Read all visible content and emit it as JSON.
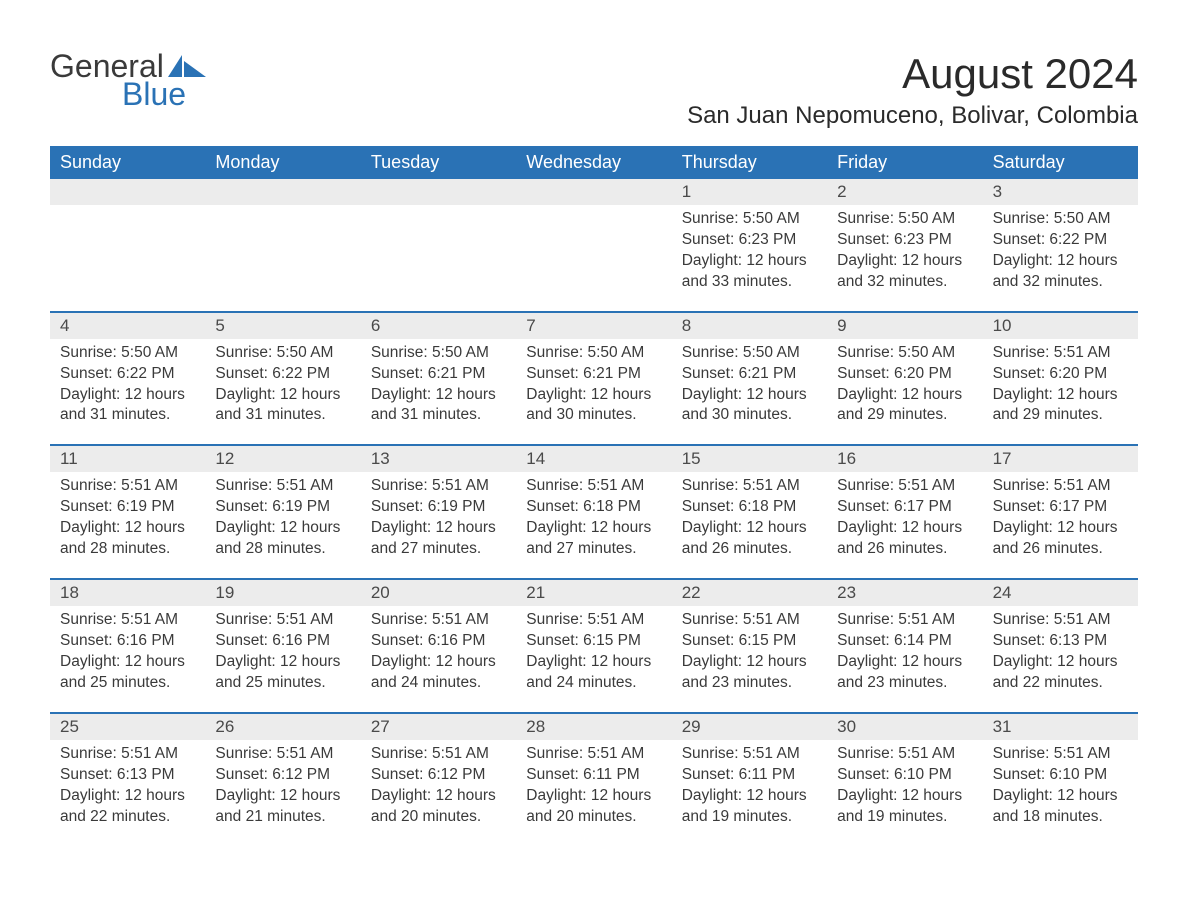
{
  "logo": {
    "text_general": "General",
    "text_blue": "Blue",
    "sail_color": "#2a72b5"
  },
  "header": {
    "month_title": "August 2024",
    "location": "San Juan Nepomuceno, Bolivar, Colombia"
  },
  "styling": {
    "header_bg": "#2a72b5",
    "header_text_color": "#ffffff",
    "daynum_bg": "#ececec",
    "daynum_color": "#4a4a4a",
    "body_text_color": "#3a3a3a",
    "row_border_color": "#2a72b5",
    "page_bg": "#ffffff",
    "month_title_fontsize": 42,
    "location_fontsize": 24,
    "weekday_fontsize": 18,
    "daynum_fontsize": 17,
    "detail_fontsize": 15.5
  },
  "weekdays": [
    "Sunday",
    "Monday",
    "Tuesday",
    "Wednesday",
    "Thursday",
    "Friday",
    "Saturday"
  ],
  "weeks": [
    [
      {
        "day": "",
        "sunrise": "",
        "sunset": "",
        "daylight": ""
      },
      {
        "day": "",
        "sunrise": "",
        "sunset": "",
        "daylight": ""
      },
      {
        "day": "",
        "sunrise": "",
        "sunset": "",
        "daylight": ""
      },
      {
        "day": "",
        "sunrise": "",
        "sunset": "",
        "daylight": ""
      },
      {
        "day": "1",
        "sunrise": "Sunrise: 5:50 AM",
        "sunset": "Sunset: 6:23 PM",
        "daylight": "Daylight: 12 hours and 33 minutes."
      },
      {
        "day": "2",
        "sunrise": "Sunrise: 5:50 AM",
        "sunset": "Sunset: 6:23 PM",
        "daylight": "Daylight: 12 hours and 32 minutes."
      },
      {
        "day": "3",
        "sunrise": "Sunrise: 5:50 AM",
        "sunset": "Sunset: 6:22 PM",
        "daylight": "Daylight: 12 hours and 32 minutes."
      }
    ],
    [
      {
        "day": "4",
        "sunrise": "Sunrise: 5:50 AM",
        "sunset": "Sunset: 6:22 PM",
        "daylight": "Daylight: 12 hours and 31 minutes."
      },
      {
        "day": "5",
        "sunrise": "Sunrise: 5:50 AM",
        "sunset": "Sunset: 6:22 PM",
        "daylight": "Daylight: 12 hours and 31 minutes."
      },
      {
        "day": "6",
        "sunrise": "Sunrise: 5:50 AM",
        "sunset": "Sunset: 6:21 PM",
        "daylight": "Daylight: 12 hours and 31 minutes."
      },
      {
        "day": "7",
        "sunrise": "Sunrise: 5:50 AM",
        "sunset": "Sunset: 6:21 PM",
        "daylight": "Daylight: 12 hours and 30 minutes."
      },
      {
        "day": "8",
        "sunrise": "Sunrise: 5:50 AM",
        "sunset": "Sunset: 6:21 PM",
        "daylight": "Daylight: 12 hours and 30 minutes."
      },
      {
        "day": "9",
        "sunrise": "Sunrise: 5:50 AM",
        "sunset": "Sunset: 6:20 PM",
        "daylight": "Daylight: 12 hours and 29 minutes."
      },
      {
        "day": "10",
        "sunrise": "Sunrise: 5:51 AM",
        "sunset": "Sunset: 6:20 PM",
        "daylight": "Daylight: 12 hours and 29 minutes."
      }
    ],
    [
      {
        "day": "11",
        "sunrise": "Sunrise: 5:51 AM",
        "sunset": "Sunset: 6:19 PM",
        "daylight": "Daylight: 12 hours and 28 minutes."
      },
      {
        "day": "12",
        "sunrise": "Sunrise: 5:51 AM",
        "sunset": "Sunset: 6:19 PM",
        "daylight": "Daylight: 12 hours and 28 minutes."
      },
      {
        "day": "13",
        "sunrise": "Sunrise: 5:51 AM",
        "sunset": "Sunset: 6:19 PM",
        "daylight": "Daylight: 12 hours and 27 minutes."
      },
      {
        "day": "14",
        "sunrise": "Sunrise: 5:51 AM",
        "sunset": "Sunset: 6:18 PM",
        "daylight": "Daylight: 12 hours and 27 minutes."
      },
      {
        "day": "15",
        "sunrise": "Sunrise: 5:51 AM",
        "sunset": "Sunset: 6:18 PM",
        "daylight": "Daylight: 12 hours and 26 minutes."
      },
      {
        "day": "16",
        "sunrise": "Sunrise: 5:51 AM",
        "sunset": "Sunset: 6:17 PM",
        "daylight": "Daylight: 12 hours and 26 minutes."
      },
      {
        "day": "17",
        "sunrise": "Sunrise: 5:51 AM",
        "sunset": "Sunset: 6:17 PM",
        "daylight": "Daylight: 12 hours and 26 minutes."
      }
    ],
    [
      {
        "day": "18",
        "sunrise": "Sunrise: 5:51 AM",
        "sunset": "Sunset: 6:16 PM",
        "daylight": "Daylight: 12 hours and 25 minutes."
      },
      {
        "day": "19",
        "sunrise": "Sunrise: 5:51 AM",
        "sunset": "Sunset: 6:16 PM",
        "daylight": "Daylight: 12 hours and 25 minutes."
      },
      {
        "day": "20",
        "sunrise": "Sunrise: 5:51 AM",
        "sunset": "Sunset: 6:16 PM",
        "daylight": "Daylight: 12 hours and 24 minutes."
      },
      {
        "day": "21",
        "sunrise": "Sunrise: 5:51 AM",
        "sunset": "Sunset: 6:15 PM",
        "daylight": "Daylight: 12 hours and 24 minutes."
      },
      {
        "day": "22",
        "sunrise": "Sunrise: 5:51 AM",
        "sunset": "Sunset: 6:15 PM",
        "daylight": "Daylight: 12 hours and 23 minutes."
      },
      {
        "day": "23",
        "sunrise": "Sunrise: 5:51 AM",
        "sunset": "Sunset: 6:14 PM",
        "daylight": "Daylight: 12 hours and 23 minutes."
      },
      {
        "day": "24",
        "sunrise": "Sunrise: 5:51 AM",
        "sunset": "Sunset: 6:13 PM",
        "daylight": "Daylight: 12 hours and 22 minutes."
      }
    ],
    [
      {
        "day": "25",
        "sunrise": "Sunrise: 5:51 AM",
        "sunset": "Sunset: 6:13 PM",
        "daylight": "Daylight: 12 hours and 22 minutes."
      },
      {
        "day": "26",
        "sunrise": "Sunrise: 5:51 AM",
        "sunset": "Sunset: 6:12 PM",
        "daylight": "Daylight: 12 hours and 21 minutes."
      },
      {
        "day": "27",
        "sunrise": "Sunrise: 5:51 AM",
        "sunset": "Sunset: 6:12 PM",
        "daylight": "Daylight: 12 hours and 20 minutes."
      },
      {
        "day": "28",
        "sunrise": "Sunrise: 5:51 AM",
        "sunset": "Sunset: 6:11 PM",
        "daylight": "Daylight: 12 hours and 20 minutes."
      },
      {
        "day": "29",
        "sunrise": "Sunrise: 5:51 AM",
        "sunset": "Sunset: 6:11 PM",
        "daylight": "Daylight: 12 hours and 19 minutes."
      },
      {
        "day": "30",
        "sunrise": "Sunrise: 5:51 AM",
        "sunset": "Sunset: 6:10 PM",
        "daylight": "Daylight: 12 hours and 19 minutes."
      },
      {
        "day": "31",
        "sunrise": "Sunrise: 5:51 AM",
        "sunset": "Sunset: 6:10 PM",
        "daylight": "Daylight: 12 hours and 18 minutes."
      }
    ]
  ]
}
